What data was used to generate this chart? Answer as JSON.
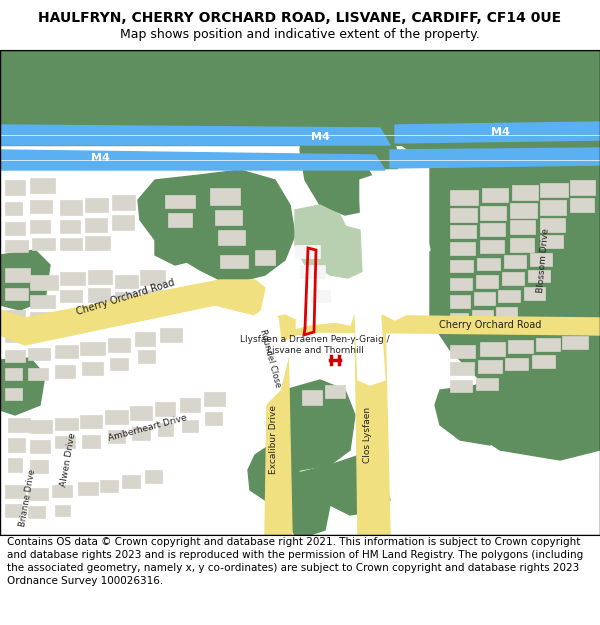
{
  "title": "HAULFRYN, CHERRY ORCHARD ROAD, LISVANE, CARDIFF, CF14 0UE",
  "subtitle": "Map shows position and indicative extent of the property.",
  "footer": "Contains OS data © Crown copyright and database right 2021. This information is subject to Crown copyright and database rights 2023 and is reproduced with the permission of HM Land Registry. The polygons (including the associated geometry, namely x, y co-ordinates) are subject to Crown copyright and database rights 2023 Ordnance Survey 100026316.",
  "bg_white": "#ffffff",
  "green_dark": "#5f8f5f",
  "green_light": "#b8d0b0",
  "blue_m4": "#5ab0f0",
  "blue_light": "#c8e8f8",
  "yellow_road": "#f0e080",
  "yellow_road_edge": "#e8c840",
  "road_white": "#ffffff",
  "road_gray": "#e8e8e8",
  "building_gray": "#d8d5cc",
  "building_outline": "#bbbbbb",
  "red_plot": "#dd0000",
  "red_station": "#cc0000",
  "text_dark": "#222222",
  "title_fontsize": 10,
  "subtitle_fontsize": 9,
  "footer_fontsize": 7.5
}
